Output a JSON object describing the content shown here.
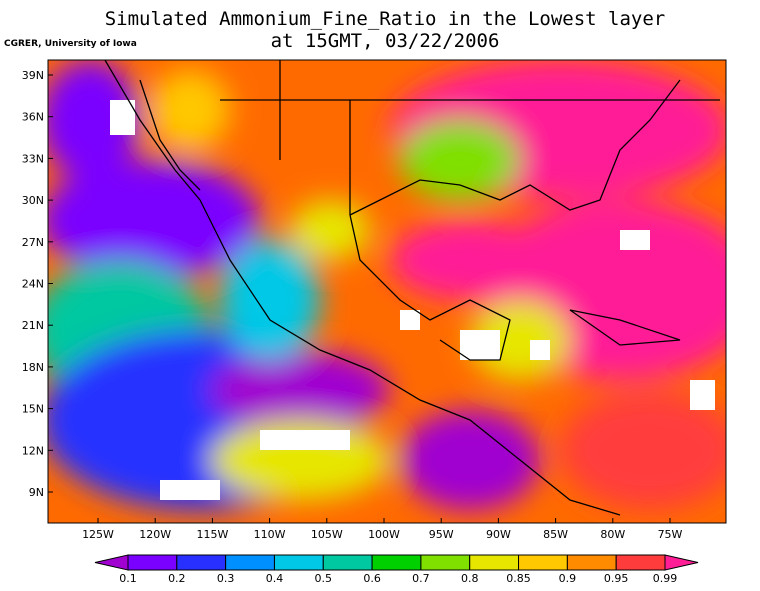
{
  "header": {
    "title_line1": "Simulated Ammonium_Fine_Ratio in the Lowest layer",
    "title_line2": "at 15GMT, 03/22/2006",
    "credit": "CGRER, University of Iowa"
  },
  "map": {
    "lat_labels": [
      "39N",
      "36N",
      "33N",
      "30N",
      "27N",
      "24N",
      "21N",
      "18N",
      "15N",
      "12N",
      "9N"
    ],
    "lon_labels": [
      "125W",
      "120W",
      "115W",
      "110W",
      "105W",
      "100W",
      "95W",
      "90W",
      "85W",
      "80W",
      "75W"
    ]
  },
  "colorbar": {
    "labels": [
      "0.1",
      "0.2",
      "0.3",
      "0.4",
      "0.5",
      "0.6",
      "0.7",
      "0.8",
      "0.85",
      "0.9",
      "0.95",
      "0.99"
    ],
    "colors": [
      "#a000d0",
      "#7a00ff",
      "#2830ff",
      "#0090ff",
      "#00c8e6",
      "#00c8a0",
      "#00d000",
      "#80e000",
      "#e6e600",
      "#ffc800",
      "#ff8c00",
      "#ff3c3c",
      "#ff1e96"
    ]
  }
}
